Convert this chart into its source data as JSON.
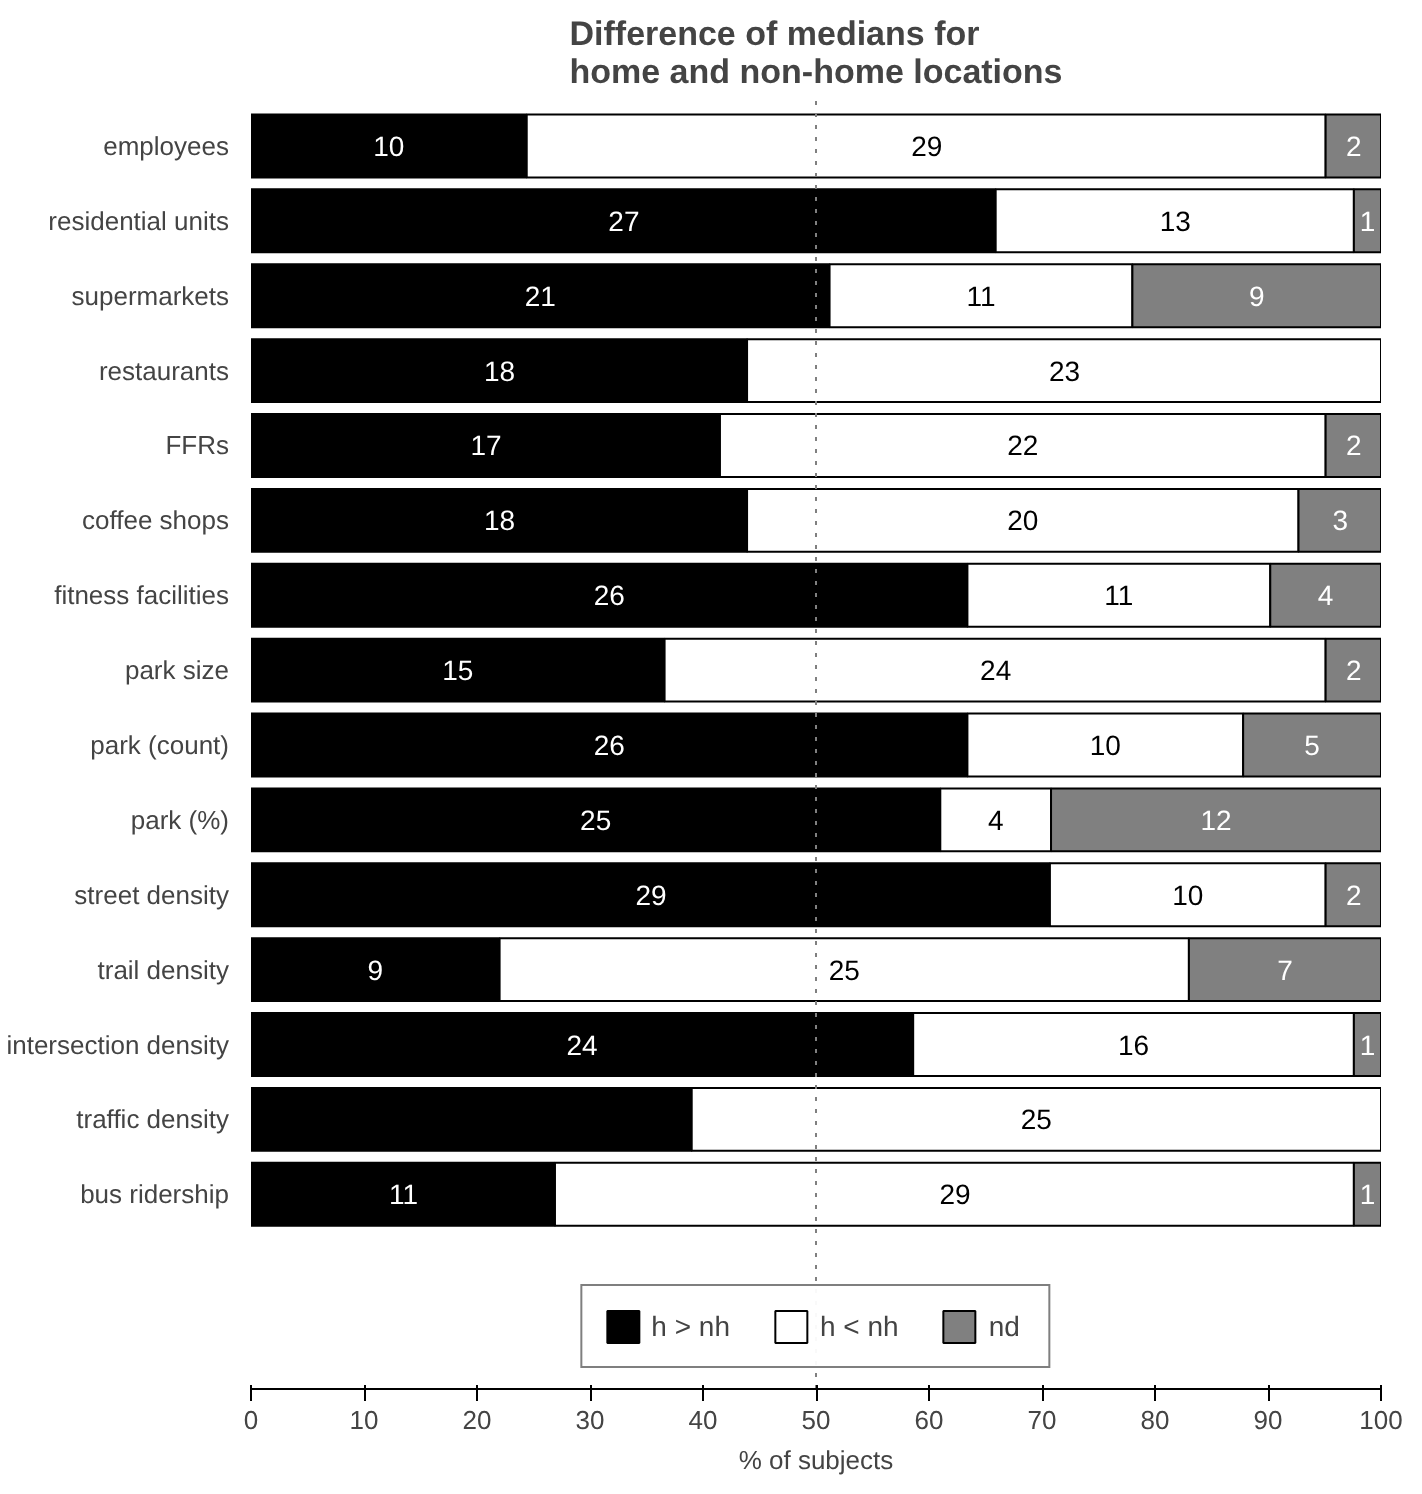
{
  "chart_data": {
    "type": "bar",
    "orientation": "horizontal",
    "stacked": true,
    "title": "Difference of medians for\nhome and non-home locations",
    "xlabel": "% of subjects",
    "categories": [
      "employees",
      "residential units",
      "supermarkets",
      "restaurants",
      "FFRs",
      "coffee shops",
      "fitness facilities",
      "park size",
      "park (count)",
      "park (%)",
      "street density",
      "trail density",
      "intersection density",
      "traffic density",
      "bus ridership"
    ],
    "series": [
      {
        "name": "h > nh",
        "color": "#000000",
        "values": [
          24.4,
          65.9,
          51.2,
          43.9,
          41.5,
          43.9,
          63.4,
          36.6,
          63.4,
          61.0,
          70.7,
          22.0,
          58.6,
          39.0,
          26.9
        ]
      },
      {
        "name": "h < nh",
        "color": "#ffffff",
        "values": [
          70.7,
          31.7,
          26.8,
          56.1,
          53.6,
          48.8,
          26.8,
          58.5,
          24.4,
          9.8,
          24.4,
          61.0,
          39.0,
          61.0,
          70.7
        ]
      },
      {
        "name": "nd",
        "color": "#808080",
        "values": [
          4.9,
          2.4,
          22.0,
          0,
          4.9,
          7.3,
          9.8,
          4.9,
          12.2,
          29.2,
          4.9,
          17.0,
          2.4,
          0,
          2.4
        ]
      }
    ],
    "annotations": [
      {
        "text": "10",
        "x": 12.2,
        "y": "employees"
      },
      {
        "text": "29",
        "x": 59.8,
        "y": "employees"
      },
      {
        "text": "2",
        "x": 97.6,
        "y": "employees"
      },
      {
        "text": "27",
        "x": 33.0,
        "y": "residential units"
      },
      {
        "text": "13",
        "x": 81.8,
        "y": "residential units"
      },
      {
        "text": "1",
        "x": 98.8,
        "y": "residential units"
      },
      {
        "text": "21",
        "x": 25.6,
        "y": "supermarkets"
      },
      {
        "text": "11",
        "x": 64.6,
        "y": "supermarkets"
      },
      {
        "text": "9",
        "x": 89.0,
        "y": "supermarkets"
      },
      {
        "text": "18",
        "x": 22.0,
        "y": "restaurants"
      },
      {
        "text": "23",
        "x": 72.0,
        "y": "restaurants"
      },
      {
        "text": "17",
        "x": 20.8,
        "y": "FFRs"
      },
      {
        "text": "22",
        "x": 68.3,
        "y": "FFRs"
      },
      {
        "text": "2",
        "x": 97.6,
        "y": "FFRs"
      },
      {
        "text": "18",
        "x": 22.0,
        "y": "coffee shops"
      },
      {
        "text": "20",
        "x": 68.3,
        "y": "coffee shops"
      },
      {
        "text": "3",
        "x": 96.4,
        "y": "coffee shops"
      },
      {
        "text": "26",
        "x": 31.7,
        "y": "fitness facilities"
      },
      {
        "text": "11",
        "x": 76.8,
        "y": "fitness facilities"
      },
      {
        "text": "4",
        "x": 95.1,
        "y": "fitness facilities"
      },
      {
        "text": "15",
        "x": 18.3,
        "y": "park size"
      },
      {
        "text": "24",
        "x": 65.9,
        "y": "park size"
      },
      {
        "text": "2",
        "x": 97.6,
        "y": "park size"
      },
      {
        "text": "26",
        "x": 31.7,
        "y": "park (count)"
      },
      {
        "text": "10",
        "x": 75.6,
        "y": "park (count)"
      },
      {
        "text": "5",
        "x": 93.9,
        "y": "park (count)"
      },
      {
        "text": "25",
        "x": 30.5,
        "y": "park (%)"
      },
      {
        "text": "4",
        "x": 65.9,
        "y": "park (%)"
      },
      {
        "text": "12",
        "x": 85.4,
        "y": "park (%)"
      },
      {
        "text": "29",
        "x": 35.4,
        "y": "street density"
      },
      {
        "text": "10",
        "x": 82.9,
        "y": "street density"
      },
      {
        "text": "2",
        "x": 97.6,
        "y": "street density"
      },
      {
        "text": "9",
        "x": 11.0,
        "y": "trail density"
      },
      {
        "text": "25",
        "x": 52.5,
        "y": "trail density"
      },
      {
        "text": "7",
        "x": 91.5,
        "y": "trail density"
      },
      {
        "text": "24",
        "x": 29.3,
        "y": "intersection density"
      },
      {
        "text": "16",
        "x": 78.1,
        "y": "intersection density"
      },
      {
        "text": "1",
        "x": 98.8,
        "y": "intersection density"
      },
      {
        "text": "25",
        "x": 69.5,
        "y": "traffic density"
      },
      {
        "text": "11",
        "x": 13.5,
        "y": "bus ridership"
      },
      {
        "text": "29",
        "x": 62.3,
        "y": "bus ridership"
      },
      {
        "text": "1",
        "x": 98.8,
        "y": "bus ridership"
      }
    ],
    "xlim": [
      0,
      100
    ],
    "xticks": [
      0,
      10,
      20,
      30,
      40,
      50,
      60,
      70,
      80,
      90,
      100
    ],
    "ref_lines": [
      {
        "axis": "x",
        "value": 50,
        "color": "#808080",
        "line_style": "dotted"
      }
    ],
    "grid": false,
    "legend": "bottom"
  }
}
